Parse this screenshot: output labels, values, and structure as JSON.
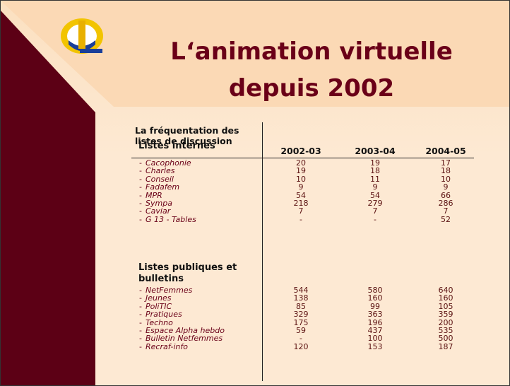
{
  "slide": {
    "title_lines": [
      "L‘animation virtuelle",
      "depuis 2002"
    ],
    "table": {
      "caption_lines": [
        "La fréquentation des",
        "listes de discussion"
      ],
      "columns": [
        "2002-03",
        "2003-04",
        "2004-05"
      ],
      "sections": [
        {
          "title_lines": [
            "Listes internes"
          ],
          "rows": [
            {
              "name": "Cacophonie",
              "values": [
                20,
                19,
                17
              ]
            },
            {
              "name": "Charles",
              "values": [
                19,
                18,
                18
              ]
            },
            {
              "name": "Conseil",
              "values": [
                10,
                11,
                10
              ]
            },
            {
              "name": "Fadafem",
              "values": [
                9,
                9,
                9
              ]
            },
            {
              "name": "MPR",
              "values": [
                54,
                54,
                66
              ]
            },
            {
              "name": "Sympa",
              "values": [
                218,
                279,
                286
              ]
            },
            {
              "name": "Caviar",
              "values": [
                7,
                7,
                7
              ]
            },
            {
              "name": "G 13 - Tables",
              "values": [
                "-",
                "-",
                52
              ]
            }
          ]
        },
        {
          "title_lines": [
            "Listes publiques et",
            "bulletins"
          ],
          "rows": [
            {
              "name": "NetFemmes",
              "values": [
                544,
                580,
                640
              ]
            },
            {
              "name": "Jeunes",
              "values": [
                138,
                160,
                160
              ]
            },
            {
              "name": "PoliTIC",
              "values": [
                85,
                99,
                105
              ]
            },
            {
              "name": "Pratiques",
              "values": [
                329,
                363,
                359
              ]
            },
            {
              "name": "Techno",
              "values": [
                175,
                196,
                200
              ]
            },
            {
              "name": "Espace Alpha hebdo",
              "values": [
                59,
                437,
                535
              ]
            },
            {
              "name": "Bulletin Netfemmes",
              "values": [
                "-",
                100,
                500
              ]
            },
            {
              "name": "Recraf-info",
              "values": [
                120,
                153,
                187
              ]
            }
          ]
        }
      ]
    }
  }
}
